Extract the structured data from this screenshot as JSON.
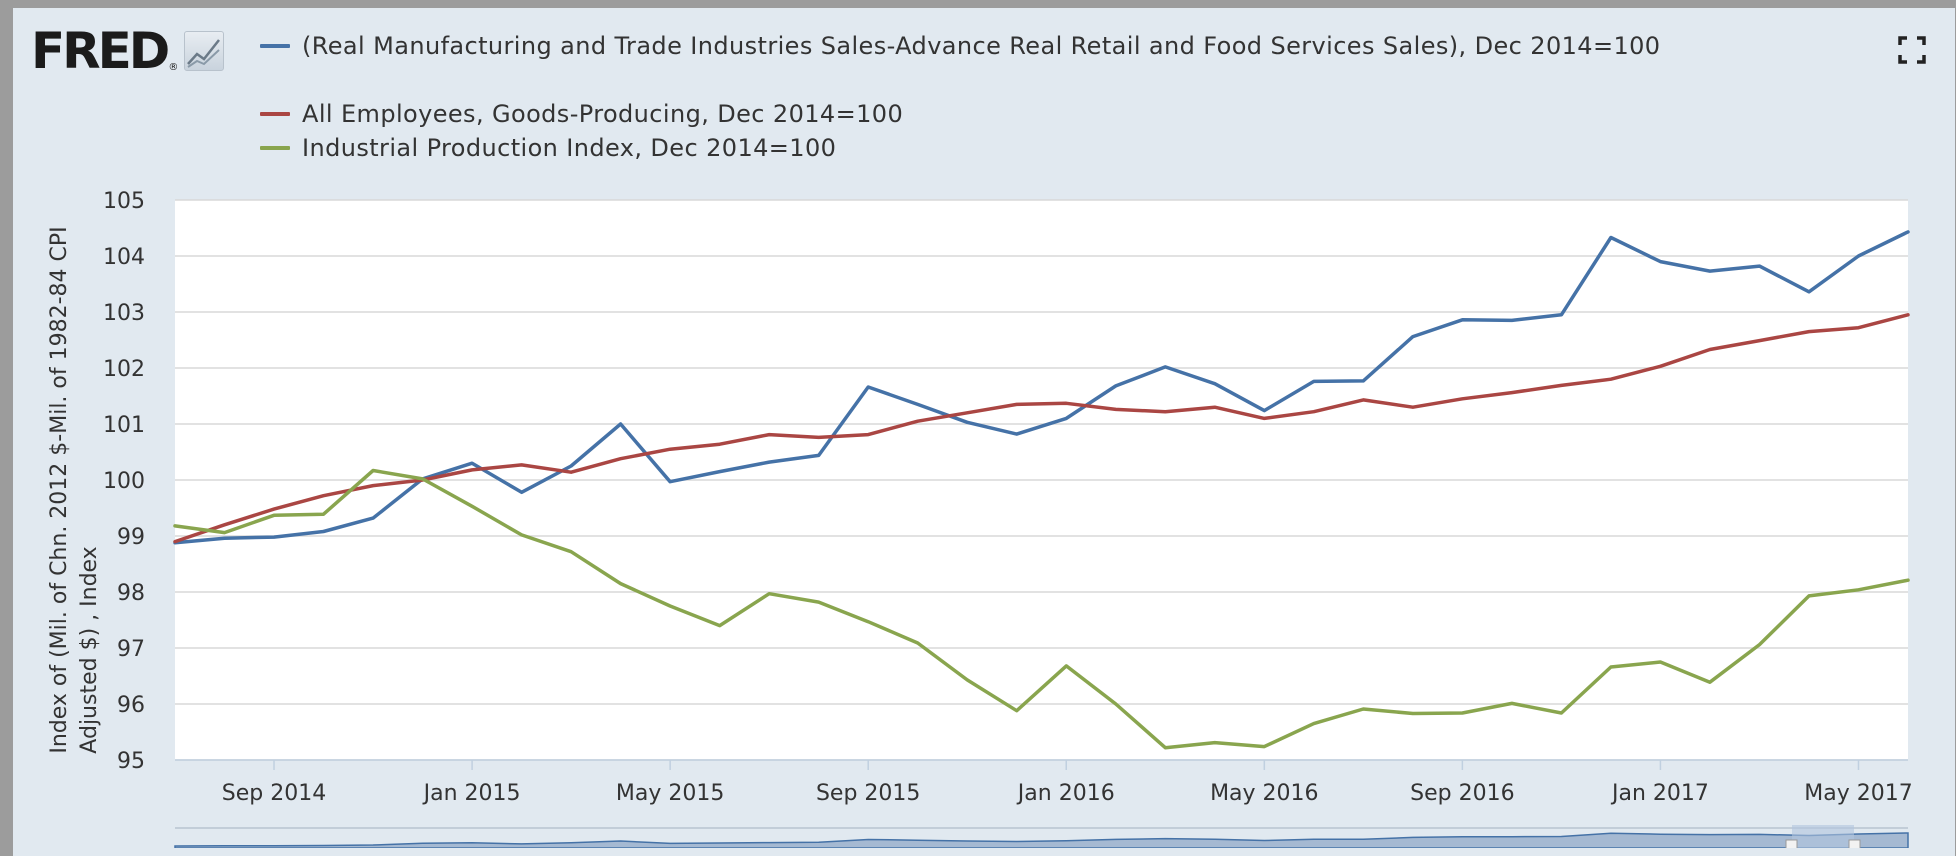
{
  "colors": {
    "series_blue": "#4572a7",
    "series_red": "#aa4643",
    "series_green": "#89a54e",
    "plot_bg": "#ffffff",
    "panel_bg": "#e1e9f0",
    "grid": "#d8d8d8",
    "navigator_fill": "#90a8c8"
  },
  "header": {
    "logo_text": "FRED",
    "logo_reg": "®",
    "fullscreen_icon": "fullscreen-icon"
  },
  "chart_data": {
    "type": "line",
    "title": "",
    "xlabel": "",
    "ylabel": "Index of (Mil. of Chn. 2012 $-Mil. of 1982-84 CPI Adjusted $) , Index",
    "ylabel_lines": [
      "Index of (Mil. of Chn. 2012 $-Mil. of 1982-84 CPI",
      "Adjusted $) , Index"
    ],
    "ylim": [
      95,
      105
    ],
    "yticks": [
      "95",
      "96",
      "97",
      "98",
      "99",
      "100",
      "101",
      "102",
      "103",
      "104",
      "105"
    ],
    "xticks": [
      "Sep 2014",
      "Jan 2015",
      "May 2015",
      "Sep 2015",
      "Jan 2016",
      "May 2016",
      "Sep 2016",
      "Jan 2017",
      "May 2017"
    ],
    "xtick_dates": [
      "2014-09",
      "2015-01",
      "2015-05",
      "2015-09",
      "2016-01",
      "2016-05",
      "2016-09",
      "2017-01",
      "2017-05"
    ],
    "x_range": [
      "2014-07",
      "2017-06"
    ],
    "grid": true,
    "legend_position": "top",
    "x": [
      "2014-07",
      "2014-08",
      "2014-09",
      "2014-10",
      "2014-11",
      "2014-12",
      "2015-01",
      "2015-02",
      "2015-03",
      "2015-04",
      "2015-05",
      "2015-06",
      "2015-07",
      "2015-08",
      "2015-09",
      "2015-10",
      "2015-11",
      "2015-12",
      "2016-01",
      "2016-02",
      "2016-03",
      "2016-04",
      "2016-05",
      "2016-06",
      "2016-07",
      "2016-08",
      "2016-09",
      "2016-10",
      "2016-11",
      "2016-12",
      "2017-01",
      "2017-02",
      "2017-03",
      "2017-04",
      "2017-05",
      "2017-06"
    ],
    "series": [
      {
        "name": "(Real Manufacturing and Trade Industries Sales-Advance Real Retail and Food Services Sales), Dec 2014=100",
        "color": "#4572a7",
        "values": [
          98.88,
          98.96,
          98.98,
          99.08,
          99.32,
          100.02,
          100.3,
          99.78,
          100.25,
          101.0,
          99.97,
          100.15,
          100.32,
          100.44,
          101.66,
          101.35,
          101.03,
          100.82,
          101.1,
          101.68,
          102.02,
          101.72,
          101.24,
          101.76,
          101.77,
          102.56,
          102.86,
          102.85,
          102.95,
          104.33,
          103.9,
          103.73,
          103.82,
          103.36,
          104.0,
          104.43
        ]
      },
      {
        "name": "All Employees, Goods-Producing, Dec 2014=100",
        "color": "#aa4643",
        "values": [
          98.9,
          99.2,
          99.48,
          99.72,
          99.9,
          100.0,
          100.18,
          100.27,
          100.14,
          100.38,
          100.55,
          100.64,
          100.81,
          100.76,
          100.81,
          101.05,
          101.2,
          101.35,
          101.37,
          101.26,
          101.22,
          101.3,
          101.1,
          101.22,
          101.43,
          101.3,
          101.45,
          101.56,
          101.69,
          101.8,
          102.03,
          102.33,
          102.49,
          102.65,
          102.72,
          102.95
        ]
      },
      {
        "name": "Industrial Production Index, Dec 2014=100",
        "color": "#89a54e",
        "values": [
          99.18,
          99.06,
          99.37,
          99.39,
          100.17,
          100.02,
          99.53,
          99.02,
          98.72,
          98.15,
          97.75,
          97.4,
          97.97,
          97.82,
          97.47,
          97.09,
          96.43,
          95.88,
          96.68,
          96.0,
          95.22,
          95.31,
          95.24,
          95.65,
          95.91,
          95.83,
          95.84,
          96.01,
          95.84,
          96.66,
          96.75,
          96.39,
          97.06,
          97.93,
          98.04,
          98.21
        ]
      }
    ]
  }
}
